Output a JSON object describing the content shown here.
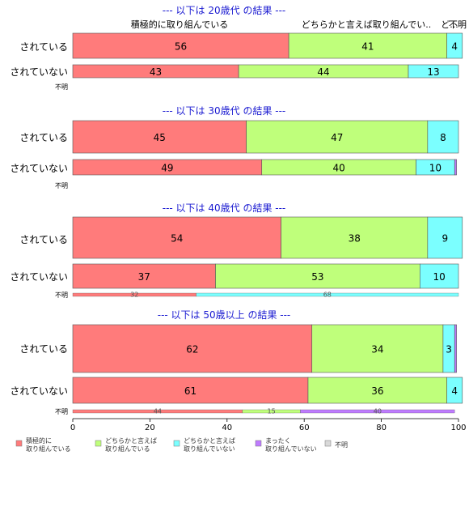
{
  "chart_data": {
    "type": "bar",
    "orientation": "horizontal",
    "stacked": true,
    "xlim": [
      0,
      100
    ],
    "xticks": [
      "0",
      "20",
      "40",
      "60",
      "80",
      "100"
    ],
    "grid": false,
    "legend_position": "bottom",
    "top_labels": [
      "積極的に取り組んでいる",
      "どちらかと言えば取り組んでい..",
      "ど...",
      "不明"
    ],
    "legend": [
      {
        "label": "積極的に\n取り組んでいる",
        "color": "#ff7b7b"
      },
      {
        "label": "どちらかと言えば\n取り組んでいる",
        "color": "#bfff7b"
      },
      {
        "label": "どちらかと言えば\n取り組んでいない",
        "color": "#7bffff"
      },
      {
        "label": "まったく\n取り組んでいない",
        "color": "#bf7bff"
      },
      {
        "label": "不明",
        "color": "#d9d9d9"
      }
    ],
    "panels": [
      {
        "title": "--- 以下は 20歳代 の結果 ---",
        "bars": [
          {
            "category": "されている",
            "values": [
              56,
              41,
              4,
              0,
              0
            ],
            "labels": [
              "56",
              "41",
              "4",
              "",
              ""
            ]
          },
          {
            "category": "されていない",
            "values": [
              43,
              44,
              13,
              0,
              0
            ],
            "labels": [
              "43",
              "44",
              "13",
              "",
              ""
            ]
          },
          {
            "category": "不明",
            "values": [
              0,
              0,
              0,
              0,
              0
            ],
            "labels": [
              "",
              "",
              "",
              "",
              ""
            ]
          }
        ]
      },
      {
        "title": "--- 以下は 30歳代 の結果 ---",
        "bars": [
          {
            "category": "されている",
            "values": [
              45,
              47,
              8,
              0,
              0
            ],
            "labels": [
              "45",
              "47",
              "8",
              "",
              ""
            ]
          },
          {
            "category": "されていない",
            "values": [
              49,
              40,
              10,
              0.5,
              0
            ],
            "labels": [
              "49",
              "40",
              "10",
              "",
              ""
            ]
          },
          {
            "category": "不明",
            "values": [
              0,
              0,
              0,
              0,
              0
            ],
            "labels": [
              "",
              "",
              "",
              "",
              ""
            ]
          }
        ]
      },
      {
        "title": "--- 以下は 40歳代 の結果 ---",
        "bars": [
          {
            "category": "されている",
            "values": [
              54,
              38,
              9,
              0,
              0
            ],
            "labels": [
              "54",
              "38",
              "9",
              "",
              ""
            ]
          },
          {
            "category": "されていない",
            "values": [
              37,
              53,
              10,
              0,
              0
            ],
            "labels": [
              "37",
              "53",
              "10",
              "",
              ""
            ]
          },
          {
            "category": "不明",
            "values": [
              32,
              0,
              68,
              0,
              0
            ],
            "labels": [
              "32",
              "",
              "68",
              "",
              ""
            ]
          }
        ]
      },
      {
        "title": "--- 以下は 50歳以上 の結果 ---",
        "bars": [
          {
            "category": "されている",
            "values": [
              62,
              34,
              3,
              0.5,
              0
            ],
            "labels": [
              "62",
              "34",
              "3",
              "",
              ""
            ]
          },
          {
            "category": "されていない",
            "values": [
              61,
              36,
              4,
              0,
              0
            ],
            "labels": [
              "61",
              "36",
              "4",
              "",
              ""
            ]
          },
          {
            "category": "不明",
            "values": [
              44,
              15,
              0,
              40,
              0
            ],
            "labels": [
              "44",
              "15",
              "",
              "40",
              ""
            ]
          }
        ]
      }
    ]
  }
}
